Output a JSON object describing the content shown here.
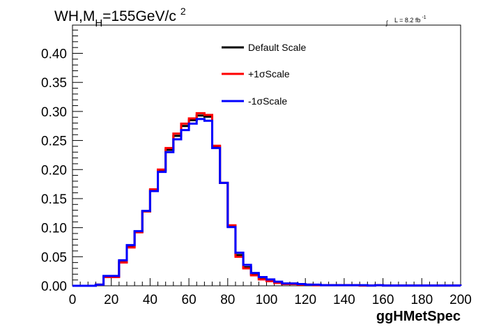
{
  "chart_data": {
    "type": "line",
    "title": {
      "main": "WH,M",
      "subscript": "H",
      "rest": "=155GeV/c",
      "superscript": "2"
    },
    "luminosity": {
      "symbol": "∫",
      "text": "L = 8.2 fb",
      "superscript": "-1"
    },
    "xlabel": "ggHMetSpec",
    "ylabel": "",
    "xlim": [
      0,
      200
    ],
    "ylim": [
      0,
      0.4
    ],
    "x_ticks": [
      "0",
      "20",
      "40",
      "60",
      "80",
      "100",
      "120",
      "140",
      "160",
      "180",
      "200"
    ],
    "y_ticks": [
      "0.00",
      "0.05",
      "0.10",
      "0.15",
      "0.20",
      "0.25",
      "0.30",
      "0.35",
      "0.40"
    ],
    "bin_edges": [
      0,
      4,
      8,
      12,
      16,
      20,
      24,
      28,
      32,
      36,
      40,
      44,
      48,
      52,
      56,
      60,
      64,
      68,
      72,
      76,
      80,
      84,
      88,
      92,
      96,
      100,
      104,
      108,
      112,
      116,
      120,
      124,
      128,
      132,
      136,
      140,
      144,
      148,
      152,
      156,
      160,
      164,
      168,
      172,
      176,
      180,
      184,
      188,
      192,
      196,
      200
    ],
    "series": [
      {
        "name": "Default Scale",
        "color": "#000000",
        "values": [
          0,
          0,
          0,
          0.002,
          0.016,
          0.016,
          0.042,
          0.068,
          0.093,
          0.128,
          0.165,
          0.198,
          0.234,
          0.258,
          0.275,
          0.285,
          0.293,
          0.291,
          0.24,
          0.177,
          0.102,
          0.053,
          0.032,
          0.02,
          0.013,
          0.009,
          0.006,
          0.003,
          0.003,
          0.002,
          0.002,
          0.001,
          0.001,
          0.001,
          0.001,
          0.001,
          0.001,
          0.0005,
          0.0005,
          0.001,
          0.0005,
          0.0005,
          0.0005,
          0.0005,
          0.0005,
          0.0005,
          0.0005,
          0.0005,
          0.0005,
          0.0005
        ]
      },
      {
        "name": "+1σScale",
        "color": "#ff0000",
        "values": [
          0,
          0,
          0,
          0.002,
          0.015,
          0.015,
          0.04,
          0.066,
          0.092,
          0.128,
          0.166,
          0.2,
          0.237,
          0.262,
          0.279,
          0.288,
          0.297,
          0.294,
          0.241,
          0.177,
          0.104,
          0.05,
          0.03,
          0.018,
          0.011,
          0.008,
          0.005,
          0.003,
          0.003,
          0.002,
          0.002,
          0.001,
          0.001,
          0.001,
          0.001,
          0.001,
          0.001,
          0.0005,
          0.0005,
          0.001,
          0.0005,
          0.0005,
          0.0005,
          0.0005,
          0.0005,
          0.0005,
          0.0005,
          0.0005,
          0.0005,
          0.0005
        ]
      },
      {
        "name": "-1σScale",
        "color": "#0000ff",
        "values": [
          0,
          0,
          0,
          0.002,
          0.017,
          0.017,
          0.044,
          0.07,
          0.094,
          0.129,
          0.163,
          0.196,
          0.23,
          0.252,
          0.268,
          0.279,
          0.287,
          0.284,
          0.237,
          0.177,
          0.101,
          0.057,
          0.036,
          0.022,
          0.015,
          0.011,
          0.007,
          0.004,
          0.004,
          0.003,
          0.002,
          0.002,
          0.001,
          0.001,
          0.001,
          0.001,
          0.001,
          0.001,
          0.0005,
          0.001,
          0.0005,
          0.0005,
          0.0005,
          0.0005,
          0.0005,
          0.0005,
          0.0005,
          0.0005,
          0.0005,
          0.0005
        ]
      }
    ],
    "legend_placement": "top-center",
    "grid": false
  }
}
